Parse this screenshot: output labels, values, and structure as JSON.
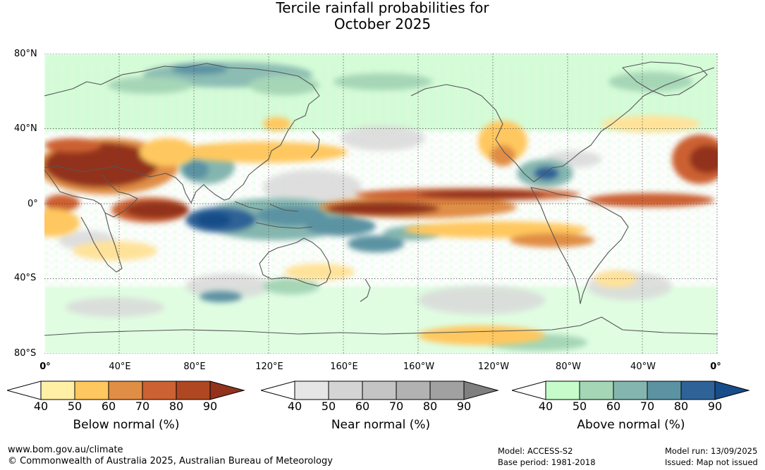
{
  "title_line1": "Tercile rainfall probabilities for",
  "title_line2": "October 2025",
  "lat_labels": [
    "80°N",
    "40°N",
    "0°",
    "40°S",
    "80°S"
  ],
  "lon_labels": [
    "0°",
    "40°E",
    "80°E",
    "120°E",
    "160°E",
    "160°W",
    "120°W",
    "80°W",
    "40°W",
    "0°"
  ],
  "colorbars": [
    {
      "name": "Below normal (%)",
      "ticks": [
        "40",
        "50",
        "60",
        "70",
        "80",
        "90"
      ],
      "colors": [
        "#ffffff",
        "#fff0a6",
        "#ffc75f",
        "#e08d45",
        "#cc6133",
        "#ae4722",
        "#93321d"
      ]
    },
    {
      "name": "Near normal (%)",
      "ticks": [
        "40",
        "50",
        "60",
        "70",
        "80",
        "90"
      ],
      "colors": [
        "#ffffff",
        "#e6e6e6",
        "#d4d4d4",
        "#c4c4c4",
        "#b2b2b2",
        "#a1a1a1",
        "#7f7f7f"
      ]
    },
    {
      "name": "Above normal (%)",
      "ticks": [
        "40",
        "50",
        "60",
        "70",
        "80",
        "90"
      ],
      "colors": [
        "#ffffff",
        "#c6fbca",
        "#a5d6b6",
        "#84b6af",
        "#5c93a3",
        "#2f6398",
        "#174d88"
      ]
    }
  ],
  "footer": {
    "website": "www.bom.gov.au/climate",
    "copyright": "© Commonwealth of Australia 2025, Australian Bureau of Meteorology",
    "model": "Model: ACCESS-S2",
    "base_period": "Base period: 1981-2018",
    "model_run": "Model run: 13/09/2025",
    "issued": "Issued: Map not issued"
  }
}
